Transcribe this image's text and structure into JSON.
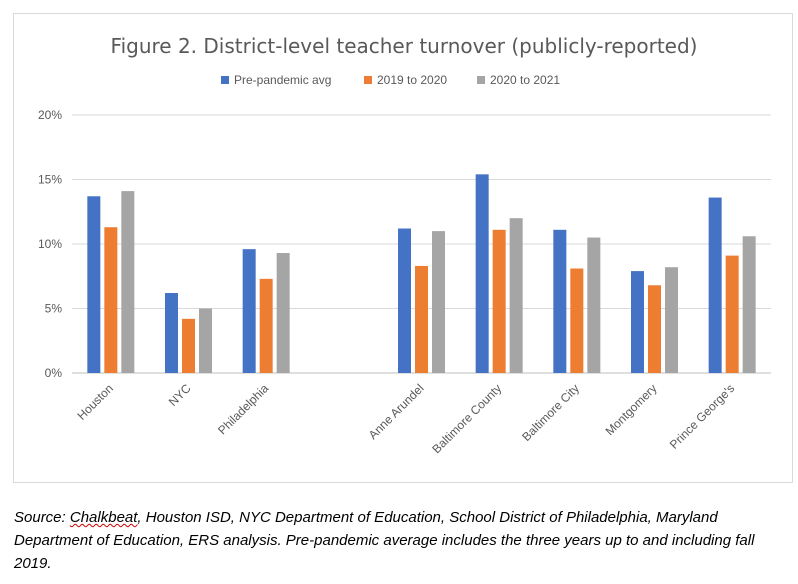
{
  "chart_data": {
    "type": "bar",
    "title": "Figure 2. District-level teacher turnover (publicly-reported)",
    "categories": [
      "Houston",
      "NYC",
      "Philadelphia",
      "",
      "Anne Arundel",
      "Baltimore County",
      "Baltimore City",
      "Montgomery",
      "Prince George's"
    ],
    "series": [
      {
        "name": "Pre-pandemic avg",
        "color": "#4472c4",
        "values": [
          13.7,
          6.2,
          9.6,
          null,
          11.2,
          15.4,
          11.1,
          7.9,
          13.6
        ]
      },
      {
        "name": "2019 to 2020",
        "color": "#ed7d31",
        "values": [
          11.3,
          4.2,
          7.3,
          null,
          8.3,
          11.1,
          8.1,
          6.8,
          9.1
        ]
      },
      {
        "name": "2020 to 2021",
        "color": "#a5a5a5",
        "values": [
          14.1,
          5.0,
          9.3,
          null,
          11.0,
          12.0,
          10.5,
          8.2,
          10.6
        ]
      }
    ],
    "y_ticks": [
      "0%",
      "5%",
      "10%",
      "15%",
      "20%"
    ],
    "ylim": [
      0,
      20
    ],
    "grid": true,
    "legend_position": "top"
  },
  "source": {
    "prefix": "Source: ",
    "link_word": "Chalkbeat",
    "rest": ", Houston ISD, NYC Department of Education, School District of Philadelphia, Maryland Department of Education, ERS analysis. Pre-pandemic average includes the three years up to and including fall 2019."
  }
}
